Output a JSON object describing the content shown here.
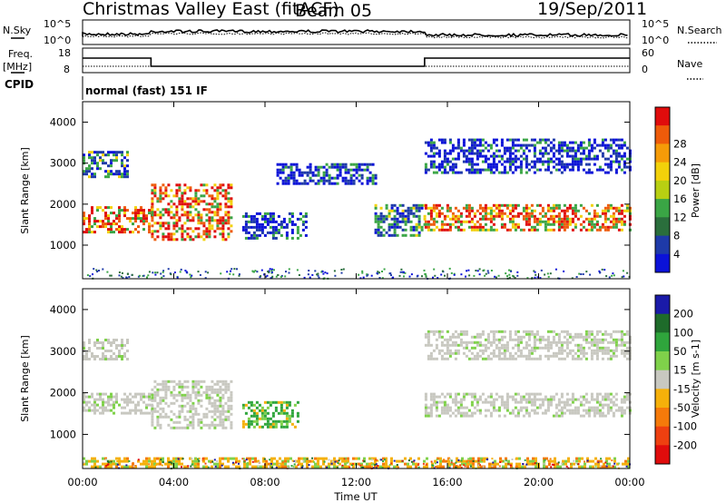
{
  "header": {
    "title": "Christmas Valley East (fitACF)",
    "beam": "Beam 05",
    "date": "19/Sep/2011"
  },
  "top_panels": {
    "nsky_label": "N.Sky",
    "nsearch_label": "N.Search",
    "nsky_ticks": [
      "10^5",
      "10^0"
    ],
    "nsearch_ticks": [
      "10^5",
      "10^0"
    ],
    "freq_label": [
      "Freq.",
      "[MHz]"
    ],
    "freq_ticks": [
      "18",
      "8"
    ],
    "nave_label": "Nave",
    "nave_ticks": [
      "60",
      "0"
    ],
    "cpid_label": "CPID",
    "cpid_value": "normal (fast) 151 IF"
  },
  "chart_data": [
    {
      "type": "heatmap",
      "name": "power",
      "xlabel": "",
      "ylabel": "Slant Range [km]",
      "xlim": [
        0,
        24
      ],
      "ylim": [
        180,
        4500
      ],
      "yticks": [
        1000,
        2000,
        3000,
        4000
      ],
      "colorbar": {
        "label": "Power [dB]",
        "ticks": [
          "4",
          "8",
          "12",
          "16",
          "20",
          "24",
          "28"
        ],
        "colors": [
          "#0b12d8",
          "#1e3aa8",
          "#2a6e3c",
          "#3aa545",
          "#b8cf12",
          "#f2d10a",
          "#f59b08",
          "#ee5b0a",
          "#e00c0c"
        ]
      },
      "features": [
        {
          "t0": 0.0,
          "t1": 3.0,
          "r0": 1350,
          "r1": 1950,
          "level": "high"
        },
        {
          "t0": 0.0,
          "t1": 2.0,
          "r0": 2700,
          "r1": 3300,
          "level": "medium"
        },
        {
          "t0": 3.0,
          "t1": 6.5,
          "r0": 1150,
          "r1": 2500,
          "level": "high"
        },
        {
          "t0": 7.0,
          "t1": 9.8,
          "r0": 1200,
          "r1": 1800,
          "level": "low"
        },
        {
          "t0": 8.5,
          "t1": 12.8,
          "r0": 2500,
          "r1": 3000,
          "level": "low"
        },
        {
          "t0": 12.8,
          "t1": 15.0,
          "r0": 1250,
          "r1": 2000,
          "level": "medium"
        },
        {
          "t0": 15.0,
          "t1": 24.0,
          "r0": 1350,
          "r1": 2000,
          "level": "high"
        },
        {
          "t0": 15.0,
          "t1": 24.0,
          "r0": 2800,
          "r1": 3600,
          "level": "low"
        }
      ]
    },
    {
      "type": "heatmap",
      "name": "velocity",
      "xlabel": "Time UT",
      "ylabel": "Slant Range [km]",
      "xlim": [
        0,
        24
      ],
      "ylim": [
        180,
        4500
      ],
      "yticks": [
        1000,
        2000,
        3000,
        4000
      ],
      "xticks": [
        "00:00",
        "04:00",
        "08:00",
        "12:00",
        "16:00",
        "20:00",
        "00:00"
      ],
      "colorbar": {
        "label": "Velocity [m s-1]",
        "ticks": [
          "200",
          "100",
          "50",
          "15",
          "-15",
          "-50",
          "-100",
          "-200"
        ],
        "colors": [
          "#1a1aa8",
          "#1e6b2a",
          "#2fa53c",
          "#7fd14a",
          "#c8c8c0",
          "#f5b00a",
          "#f57a0a",
          "#ee4010",
          "#e00c0c"
        ]
      },
      "features": [
        {
          "t0": 0.0,
          "t1": 3.0,
          "r0": 1500,
          "r1": 2000,
          "level": "ground"
        },
        {
          "t0": 0.0,
          "t1": 2.0,
          "r0": 2800,
          "r1": 3300,
          "level": "ground"
        },
        {
          "t0": 3.0,
          "t1": 6.5,
          "r0": 1150,
          "r1": 2300,
          "level": "ground"
        },
        {
          "t0": 7.0,
          "t1": 9.5,
          "r0": 1200,
          "r1": 1800,
          "level": "positive"
        },
        {
          "t0": 15.0,
          "t1": 24.0,
          "r0": 1450,
          "r1": 2000,
          "level": "ground"
        },
        {
          "t0": 15.0,
          "t1": 24.0,
          "r0": 2800,
          "r1": 3500,
          "level": "ground"
        },
        {
          "t0": 0.0,
          "t1": 24.0,
          "r0": 200,
          "r1": 450,
          "level": "negative"
        }
      ]
    }
  ]
}
